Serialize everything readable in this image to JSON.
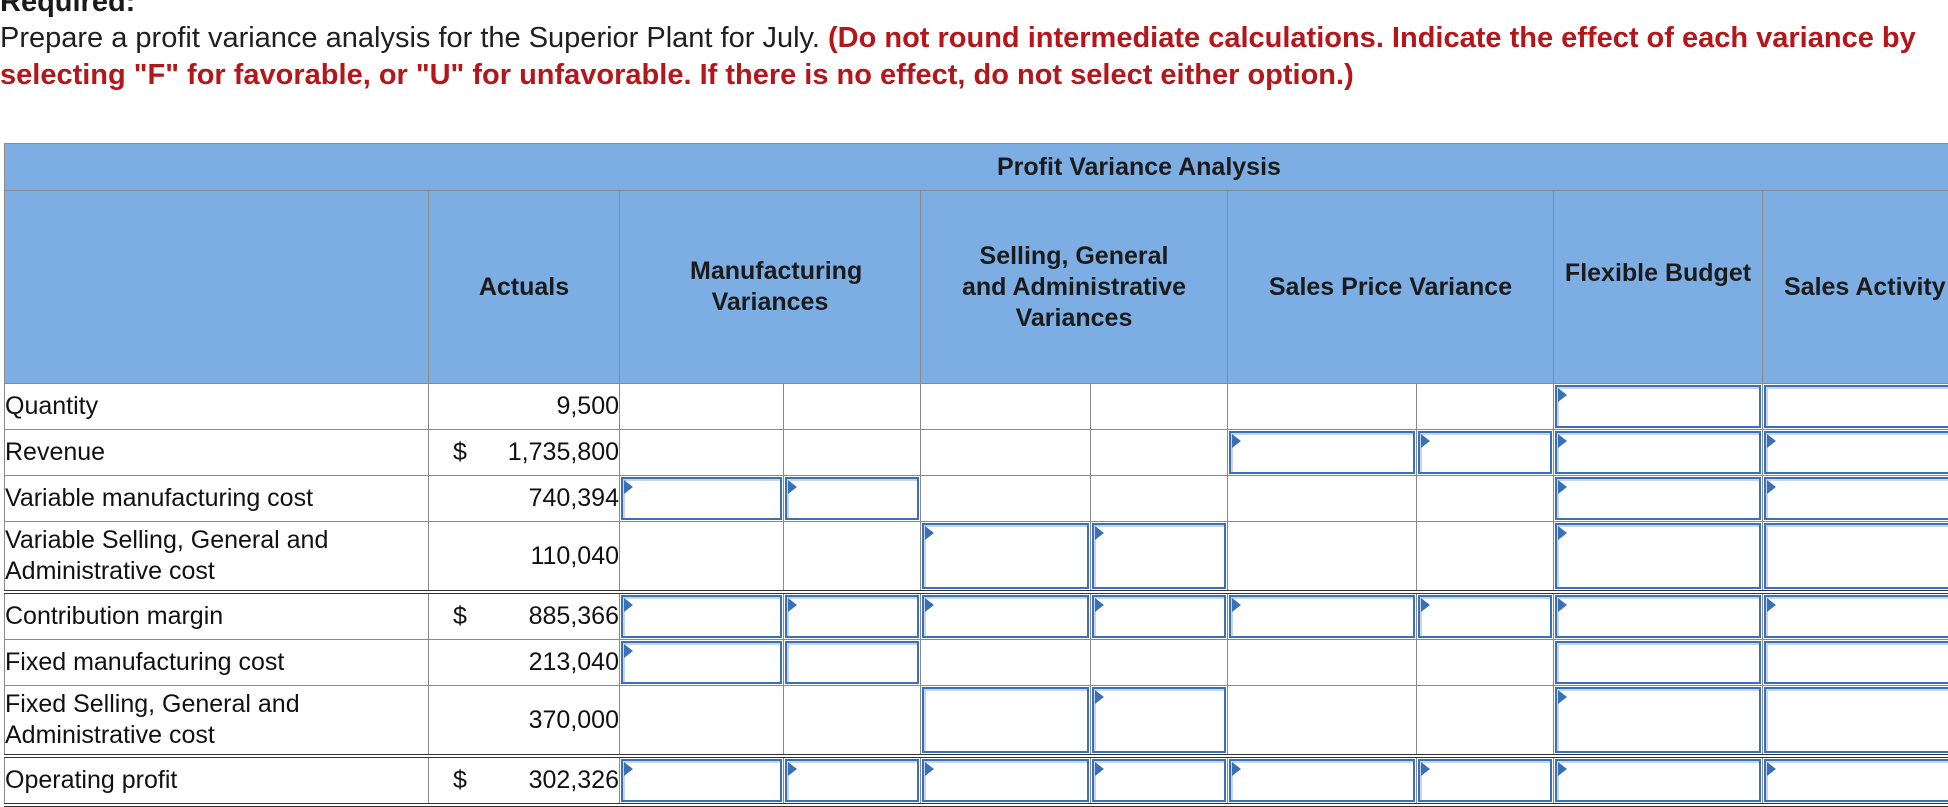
{
  "heading": "Required:",
  "instruction": {
    "text": "Prepare a profit variance analysis for the Superior Plant for July.",
    "requirement": "(Do not round intermediate calculations. Indicate the effect of each variance by selecting \"F\" for favorable, or \"U\" for unfavorable. If there is no effect, do not select either option.)"
  },
  "table": {
    "title": "Profit Variance Analysis",
    "headers": {
      "actuals": "Actuals",
      "manufacturing": "Manufacturing Variances",
      "sga": "Selling, General and Administrative Variances",
      "sales_price": "Sales Price Variance",
      "flexible_budget": "Flexible Budget",
      "sales_activity": "Sales Activity"
    },
    "rows": [
      {
        "label": "Quantity",
        "dollar": "",
        "actual": "9,500"
      },
      {
        "label": "Revenue",
        "dollar": "$",
        "actual": "1,735,800"
      },
      {
        "label": "Variable manufacturing cost",
        "dollar": "",
        "actual": "740,394"
      },
      {
        "label": "Variable Selling, General and Administrative cost",
        "dollar": "",
        "actual": "110,040"
      },
      {
        "label": "Contribution margin",
        "dollar": "$",
        "actual": "885,366"
      },
      {
        "label": "Fixed manufacturing cost",
        "dollar": "",
        "actual": "213,040"
      },
      {
        "label": "Fixed Selling, General and Administrative cost",
        "dollar": "",
        "actual": "370,000"
      },
      {
        "label": "Operating profit",
        "dollar": "$",
        "actual": "302,326"
      }
    ]
  }
}
